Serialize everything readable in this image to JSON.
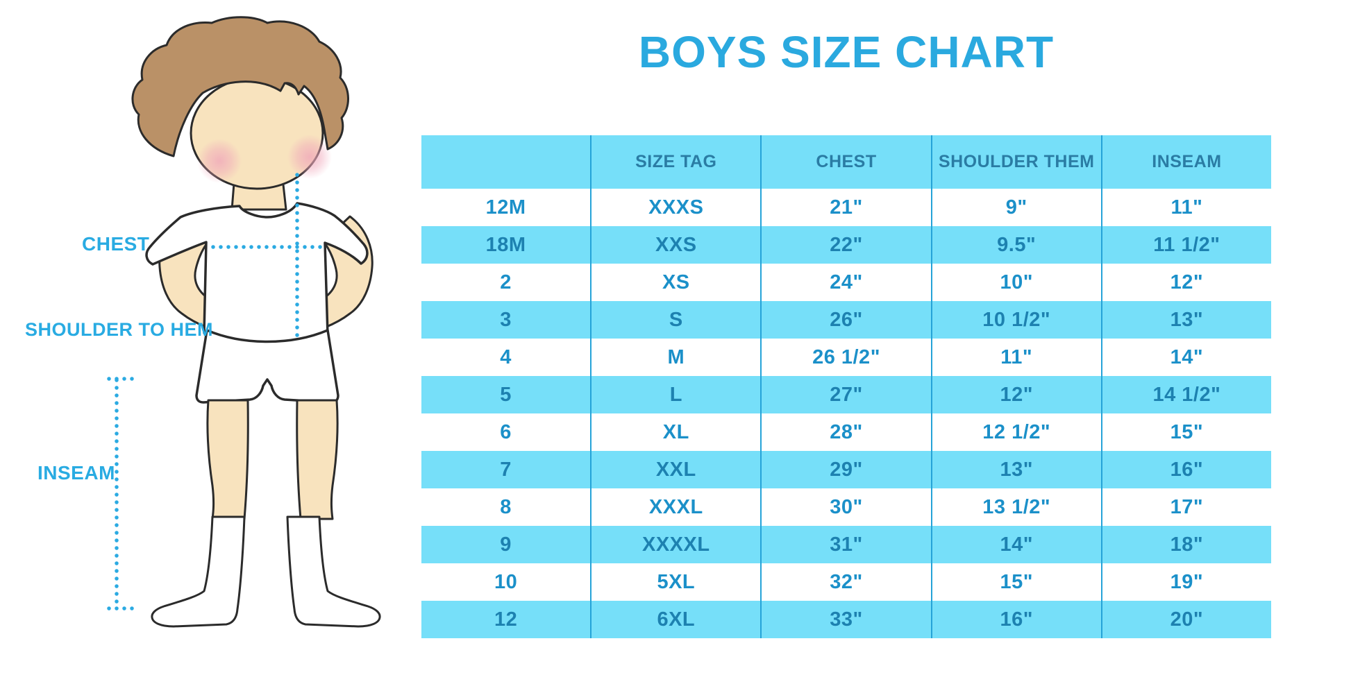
{
  "title": "BOYS SIZE CHART",
  "figure": {
    "chest_label": "CHEST",
    "shoulder_label": "SHOULDER TO HEM",
    "inseam_label": "INSEAM"
  },
  "colors": {
    "accent_blue": "#29ABE2",
    "row_cyan": "#76DFF9",
    "divider": "#25A3D8",
    "cell_text": "#1B90C9",
    "cyan_row_text": "#1D81B0",
    "header_text": "#2A7CA4",
    "hair": "#BA9167",
    "skin": "#F8E3BE",
    "cheek": "#F0A7BA",
    "outline": "#2B2B2B"
  },
  "chart_data": {
    "type": "table",
    "title": "BOYS SIZE CHART",
    "columns": [
      "",
      "SIZE TAG",
      "CHEST",
      "SHOULDER THEM",
      "INSEAM"
    ],
    "rows": [
      [
        "12M",
        "XXXS",
        "21\"",
        "9\"",
        "11\""
      ],
      [
        "18M",
        "XXS",
        "22\"",
        "9.5\"",
        "11 1/2\""
      ],
      [
        "2",
        "XS",
        "24\"",
        "10\"",
        "12\""
      ],
      [
        "3",
        "S",
        "26\"",
        "10 1/2\"",
        "13\""
      ],
      [
        "4",
        "M",
        "26 1/2\"",
        "11\"",
        "14\""
      ],
      [
        "5",
        "L",
        "27\"",
        "12\"",
        "14 1/2\""
      ],
      [
        "6",
        "XL",
        "28\"",
        "12 1/2\"",
        "15\""
      ],
      [
        "7",
        "XXL",
        "29\"",
        "13\"",
        "16\""
      ],
      [
        "8",
        "XXXL",
        "30\"",
        "13 1/2\"",
        "17\""
      ],
      [
        "9",
        "XXXXL",
        "31\"",
        "14\"",
        "18\""
      ],
      [
        "10",
        "5XL",
        "32\"",
        "15\"",
        "19\""
      ],
      [
        "12",
        "6XL",
        "33\"",
        "16\"",
        "20\""
      ]
    ]
  }
}
